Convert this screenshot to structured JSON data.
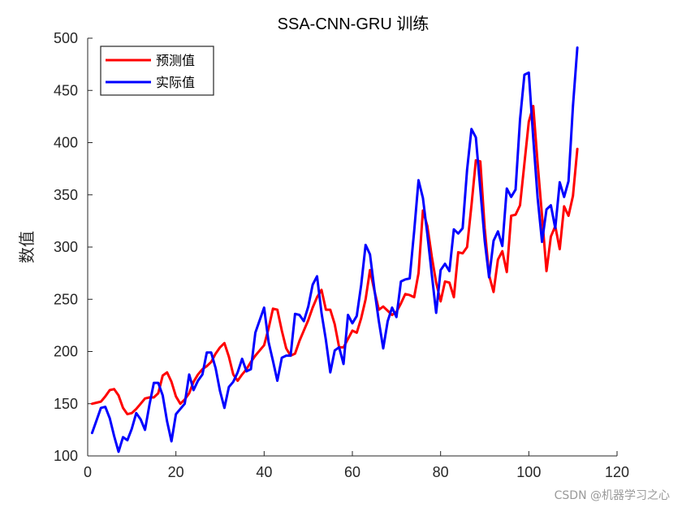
{
  "chart_data": {
    "type": "line",
    "title": "SSA-CNN-GRU 训练",
    "xlabel": "",
    "ylabel": "数值",
    "xlim": [
      0,
      120
    ],
    "ylim": [
      100,
      500
    ],
    "xticks": [
      "0",
      "20",
      "40",
      "60",
      "80",
      "100",
      "120"
    ],
    "yticks": [
      "100",
      "150",
      "200",
      "250",
      "300",
      "350",
      "400",
      "450",
      "500"
    ],
    "legend": "top-left",
    "grid": false,
    "series": [
      {
        "name": "预测值",
        "color": "#ff0000",
        "x": [
          1,
          2,
          3,
          4,
          5,
          6,
          7,
          8,
          9,
          10,
          11,
          12,
          13,
          14,
          15,
          16,
          17,
          18,
          19,
          20,
          21,
          22,
          23,
          24,
          25,
          26,
          27,
          28,
          29,
          30,
          31,
          32,
          33,
          34,
          35,
          36,
          37,
          38,
          39,
          40,
          41,
          42,
          43,
          44,
          45,
          46,
          47,
          48,
          49,
          50,
          51,
          52,
          53,
          54,
          55,
          56,
          57,
          58,
          59,
          60,
          61,
          62,
          63,
          64,
          65,
          66,
          67,
          68,
          69,
          70,
          71,
          72,
          73,
          74,
          75,
          76,
          77,
          78,
          79,
          80,
          81,
          82,
          83,
          84,
          85,
          86,
          87,
          88,
          89,
          90,
          91,
          92,
          93,
          94,
          95,
          96,
          97,
          98,
          99,
          100,
          101,
          102,
          103,
          104,
          105,
          106,
          107,
          108,
          109,
          110,
          111
        ],
        "values": [
          150,
          151,
          152,
          157,
          163,
          164,
          158,
          146,
          140,
          141,
          145,
          150,
          155,
          156,
          156,
          160,
          177,
          180,
          171,
          157,
          150,
          154,
          160,
          171,
          178,
          183,
          186,
          190,
          198,
          204,
          208,
          195,
          178,
          172,
          178,
          183,
          190,
          196,
          201,
          206,
          222,
          241,
          240,
          220,
          203,
          196,
          198,
          210,
          220,
          230,
          242,
          252,
          259,
          240,
          240,
          226,
          204,
          204,
          212,
          220,
          218,
          232,
          250,
          278,
          258,
          240,
          243,
          239,
          235,
          238,
          246,
          255,
          254,
          252,
          275,
          335,
          320,
          291,
          266,
          248,
          267,
          266,
          252,
          295,
          294,
          300,
          340,
          383,
          382,
          318,
          273,
          257,
          288,
          296,
          276,
          330,
          331,
          340,
          380,
          420,
          435,
          380,
          330,
          277,
          310,
          320,
          298,
          339,
          330,
          349,
          394
        ]
      },
      {
        "name": "实际值",
        "color": "#0000ff",
        "x": [
          1,
          2,
          3,
          4,
          5,
          6,
          7,
          8,
          9,
          10,
          11,
          12,
          13,
          14,
          15,
          16,
          17,
          18,
          19,
          20,
          21,
          22,
          23,
          24,
          25,
          26,
          27,
          28,
          29,
          30,
          31,
          32,
          33,
          34,
          35,
          36,
          37,
          38,
          39,
          40,
          41,
          42,
          43,
          44,
          45,
          46,
          47,
          48,
          49,
          50,
          51,
          52,
          53,
          54,
          55,
          56,
          57,
          58,
          59,
          60,
          61,
          62,
          63,
          64,
          65,
          66,
          67,
          68,
          69,
          70,
          71,
          72,
          73,
          74,
          75,
          76,
          77,
          78,
          79,
          80,
          81,
          82,
          83,
          84,
          85,
          86,
          87,
          88,
          89,
          90,
          91,
          92,
          93,
          94,
          95,
          96,
          97,
          98,
          99,
          100,
          101,
          102,
          103,
          104,
          105,
          106,
          107,
          108,
          109,
          110,
          111
        ],
        "values": [
          122,
          134,
          146,
          147,
          136,
          119,
          104,
          118,
          115,
          126,
          141,
          135,
          125,
          149,
          170,
          170,
          158,
          133,
          114,
          140,
          145,
          150,
          178,
          163,
          172,
          178,
          199,
          199,
          184,
          162,
          146,
          166,
          171,
          180,
          193,
          181,
          183,
          218,
          230,
          242,
          209,
          191,
          172,
          194,
          196,
          196,
          236,
          235,
          229,
          243,
          264,
          272,
          237,
          211,
          180,
          201,
          204,
          188,
          235,
          227,
          234,
          264,
          302,
          293,
          259,
          229,
          203,
          229,
          242,
          233,
          267,
          269,
          270,
          315,
          364,
          347,
          312,
          274,
          237,
          278,
          284,
          277,
          317,
          313,
          318,
          374,
          413,
          405,
          355,
          306,
          271,
          306,
          315,
          301,
          356,
          348,
          355,
          422,
          465,
          467,
          404,
          347,
          305,
          336,
          340,
          318,
          362,
          348,
          363,
          435,
          491
        ]
      }
    ],
    "watermark": "CSDN @机器学习之心"
  }
}
